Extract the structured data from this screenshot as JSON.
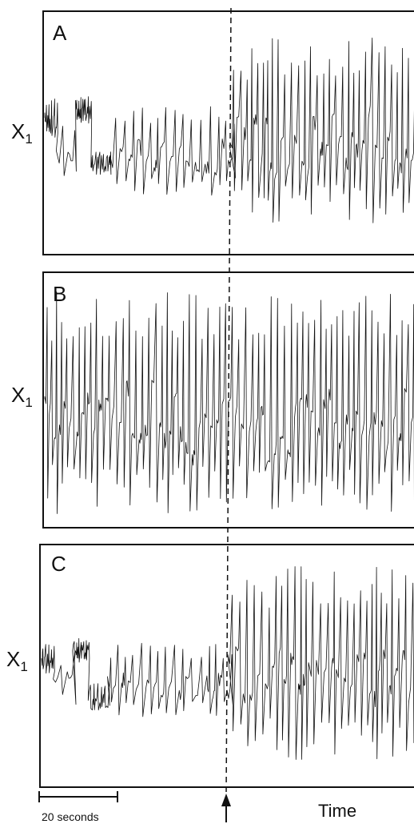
{
  "chart_data": [
    {
      "type": "line",
      "panel": "A",
      "ylabel": "X",
      "ylabel_sub": "1",
      "time_range_seconds": [
        0,
        96
      ],
      "segments": [
        {
          "t_start": 0,
          "t_end": 3,
          "center": 0.58,
          "amplitude": 0.18,
          "spike_period": 0.7
        },
        {
          "t_start": 3,
          "t_end": 8,
          "center": 0.42,
          "amplitude": 0.26,
          "spike_period": 3.0
        },
        {
          "t_start": 8,
          "t_end": 12,
          "center": 0.62,
          "amplitude": 0.14,
          "spike_period": 0.7
        },
        {
          "t_start": 12,
          "t_end": 17,
          "center": 0.36,
          "amplitude": 0.12,
          "spike_period": 0.9
        },
        {
          "t_start": 17,
          "t_end": 48,
          "center": 0.42,
          "amplitude": 0.4,
          "spike_period": 2.1
        },
        {
          "t_start": 48,
          "t_end": 96,
          "center": 0.52,
          "amplitude": 0.82,
          "spike_period": 1.55
        }
      ]
    },
    {
      "type": "line",
      "panel": "B",
      "ylabel": "X",
      "ylabel_sub": "1",
      "time_range_seconds": [
        0,
        96
      ],
      "segments": [
        {
          "t_start": 0,
          "t_end": 96,
          "center": 0.5,
          "amplitude": 0.86,
          "spike_period": 1.6
        }
      ]
    },
    {
      "type": "line",
      "panel": "C",
      "ylabel": "X",
      "ylabel_sub": "1",
      "time_range_seconds": [
        0,
        96
      ],
      "segments": [
        {
          "t_start": 0,
          "t_end": 3,
          "center": 0.52,
          "amplitude": 0.14,
          "spike_period": 0.7
        },
        {
          "t_start": 3,
          "t_end": 8,
          "center": 0.42,
          "amplitude": 0.22,
          "spike_period": 3.0
        },
        {
          "t_start": 8,
          "t_end": 12,
          "center": 0.56,
          "amplitude": 0.12,
          "spike_period": 0.7
        },
        {
          "t_start": 12,
          "t_end": 17,
          "center": 0.34,
          "amplitude": 0.12,
          "spike_period": 0.9
        },
        {
          "t_start": 17,
          "t_end": 48,
          "center": 0.42,
          "amplitude": 0.34,
          "spike_period": 2.1
        },
        {
          "t_start": 48,
          "t_end": 96,
          "center": 0.5,
          "amplitude": 0.84,
          "spike_period": 1.6
        }
      ]
    }
  ],
  "annotations": {
    "scale_bar_label": "20 seconds",
    "scale_bar_duration_seconds": 20,
    "time_axis_label": "Time",
    "event_time_seconds": 48,
    "event_line_style": "dashed"
  }
}
